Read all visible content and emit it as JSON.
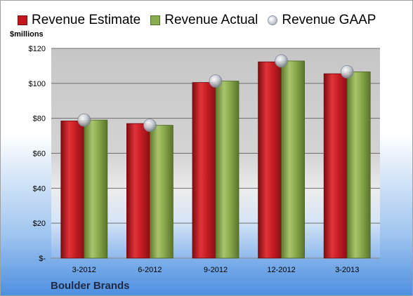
{
  "chart_data": {
    "type": "bar",
    "categories": [
      "3-2012",
      "6-2012",
      "9-2012",
      "12-2012",
      "3-2013"
    ],
    "series": [
      {
        "name": "Revenue Estimate",
        "values": [
          78.5,
          77.0,
          100.5,
          112.3,
          105.5
        ]
      },
      {
        "name": "Revenue Actual",
        "values": [
          79.0,
          76.0,
          101.3,
          112.8,
          106.6
        ]
      },
      {
        "name": "Revenue GAAP",
        "values": [
          79.0,
          76.0,
          101.3,
          112.8,
          106.6
        ]
      }
    ],
    "ylim": [
      0,
      120
    ],
    "yticks": [
      {
        "value": 0,
        "label": "$-"
      },
      {
        "value": 20,
        "label": "$20"
      },
      {
        "value": 40,
        "label": "$40"
      },
      {
        "value": 60,
        "label": "$60"
      },
      {
        "value": 80,
        "label": "$80"
      },
      {
        "value": 100,
        "label": "$100"
      },
      {
        "value": 120,
        "label": "$120"
      }
    ],
    "ylabel": "$millions",
    "grid": true,
    "legend_position": "top",
    "colors": {
      "estimate": "#c4161c",
      "actual": "#8bab4f",
      "gaap": "#c9ced6"
    }
  },
  "company": "Boulder Brands"
}
